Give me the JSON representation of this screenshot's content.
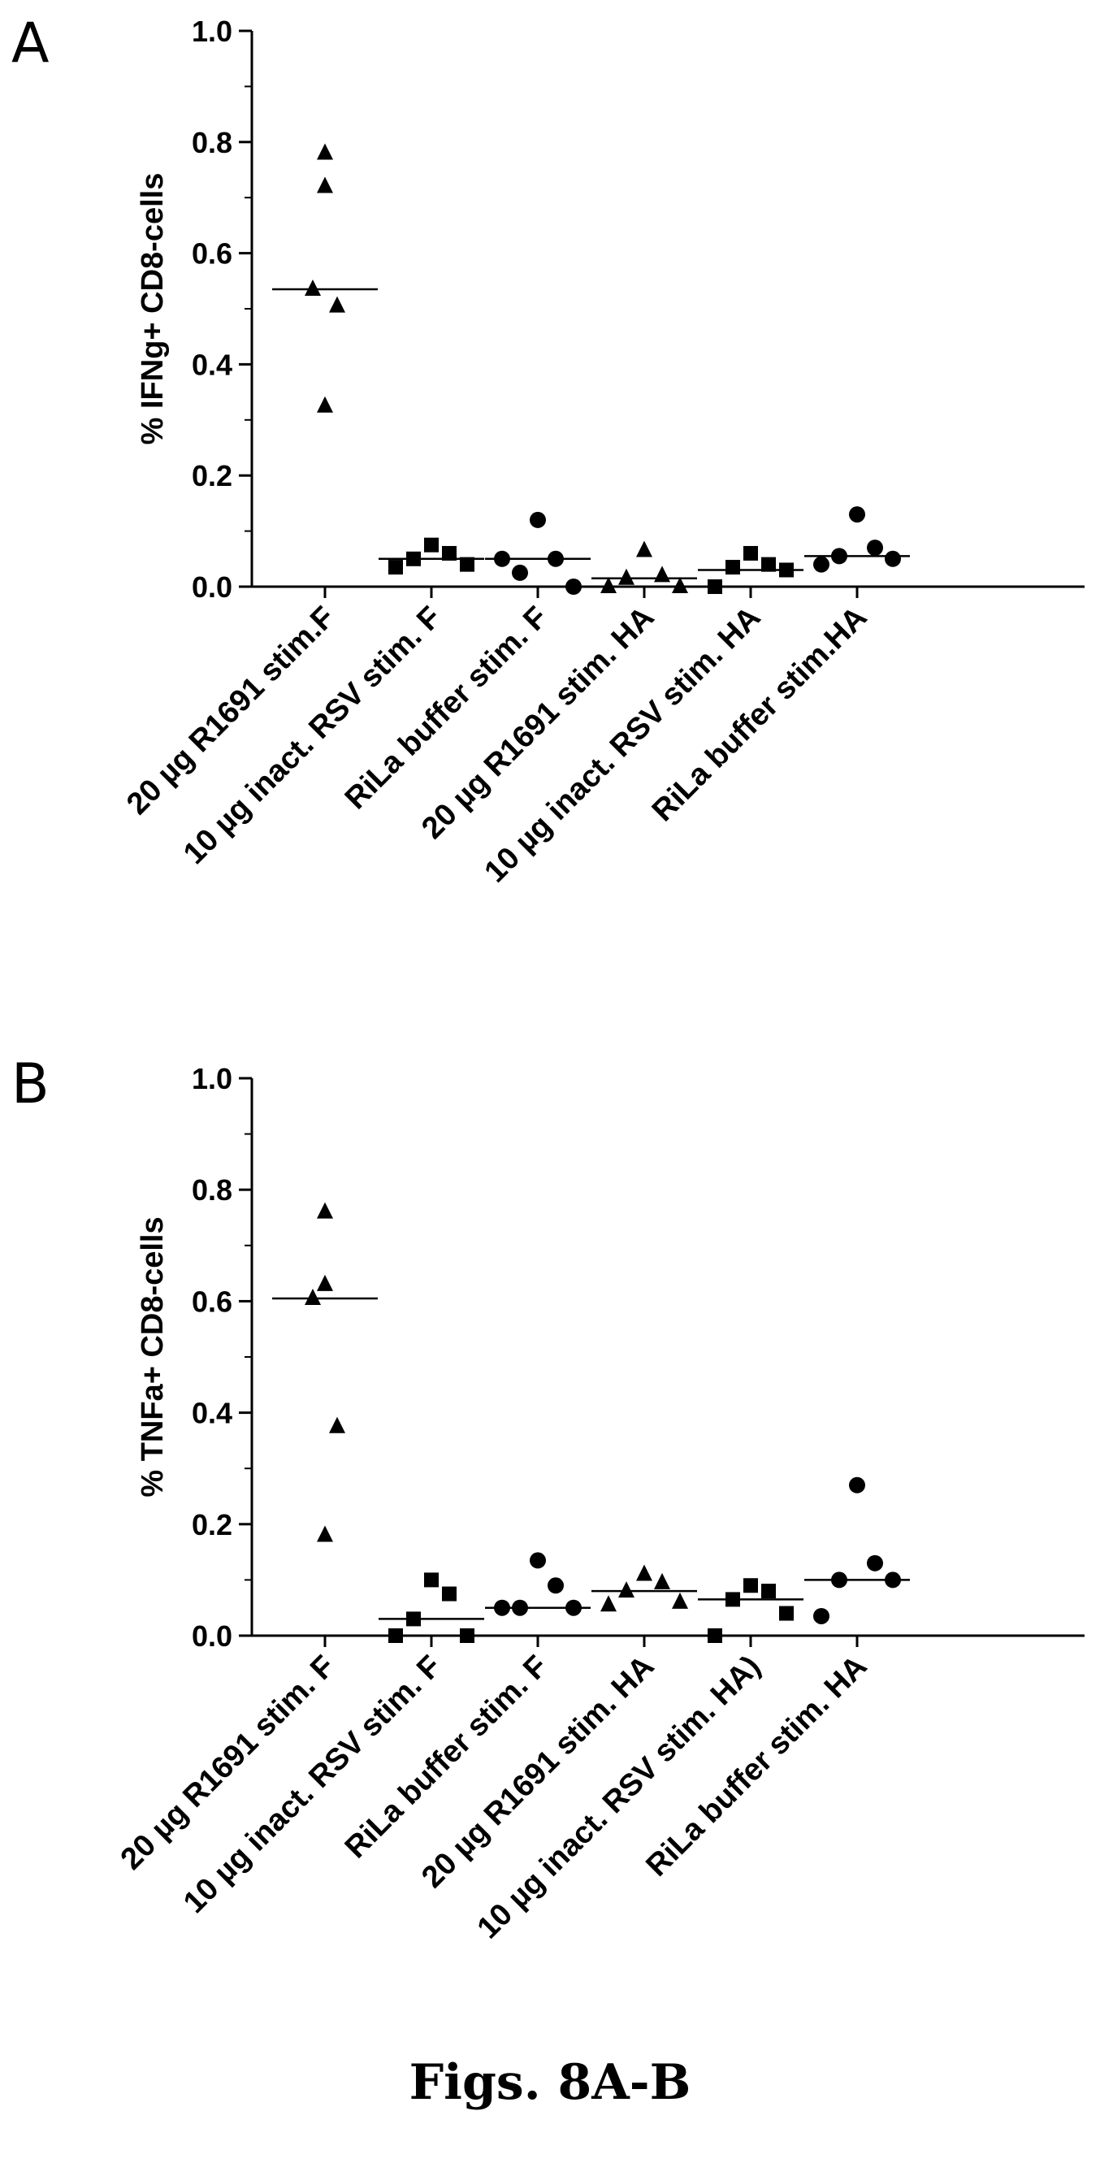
{
  "figure_caption": "Figs. 8A-B",
  "chart_data": [
    {
      "panel": "A",
      "type": "scatter",
      "ylabel": "% IFNg+ CD8-cells",
      "ylim": [
        0,
        1.0
      ],
      "yticks": [
        "0.0",
        "0.2",
        "0.4",
        "0.6",
        "0.8",
        "1.0"
      ],
      "categories": [
        "20 µg R1691 stim.F",
        "10 µg inact. RSV stim. F",
        "RiLa buffer stim. F",
        "20 µg R1691 stim. HA",
        "10 µg inact. RSV stim. HA",
        "RiLa buffer stim.HA"
      ],
      "series": [
        {
          "marker": "triangle",
          "values": [
            0.78,
            0.72,
            0.535,
            0.505,
            0.325
          ],
          "median": 0.535
        },
        {
          "marker": "square",
          "values": [
            0.075,
            0.06,
            0.05,
            0.04,
            0.035
          ],
          "median": 0.05
        },
        {
          "marker": "circle",
          "values": [
            0.12,
            0.05,
            0.025,
            0.0,
            0.05
          ],
          "median": 0.05
        },
        {
          "marker": "triangle",
          "values": [
            0.065,
            0.02,
            0.015,
            0.0,
            0.0
          ],
          "median": 0.015
        },
        {
          "marker": "square",
          "values": [
            0.06,
            0.04,
            0.035,
            0.03,
            0.0
          ],
          "median": 0.03
        },
        {
          "marker": "circle",
          "values": [
            0.13,
            0.07,
            0.055,
            0.05,
            0.04
          ],
          "median": 0.055
        }
      ]
    },
    {
      "panel": "B",
      "type": "scatter",
      "ylabel": "% TNFa+ CD8-cells",
      "ylim": [
        0,
        1.0
      ],
      "yticks": [
        "0.0",
        "0.2",
        "0.4",
        "0.6",
        "0.8",
        "1.0"
      ],
      "categories": [
        "20 µg R1691 stim. F",
        "10 µg inact. RSV stim. F",
        "RiLa buffer stim. F",
        "20 µg R1691 stim. HA",
        "10 µg inact. RSV stim. HA)",
        "RiLa buffer stim. HA"
      ],
      "series": [
        {
          "marker": "triangle",
          "values": [
            0.76,
            0.63,
            0.605,
            0.375,
            0.18
          ],
          "median": 0.605
        },
        {
          "marker": "square",
          "values": [
            0.1,
            0.075,
            0.03,
            0.0,
            0.0
          ],
          "median": 0.03
        },
        {
          "marker": "circle",
          "values": [
            0.135,
            0.09,
            0.05,
            0.05,
            0.05
          ],
          "median": 0.05
        },
        {
          "marker": "triangle",
          "values": [
            0.11,
            0.095,
            0.08,
            0.06,
            0.055
          ],
          "median": 0.08
        },
        {
          "marker": "square",
          "values": [
            0.09,
            0.08,
            0.065,
            0.04,
            0.0
          ],
          "median": 0.065
        },
        {
          "marker": "circle",
          "values": [
            0.27,
            0.13,
            0.1,
            0.1,
            0.035
          ],
          "median": 0.1
        }
      ]
    }
  ]
}
